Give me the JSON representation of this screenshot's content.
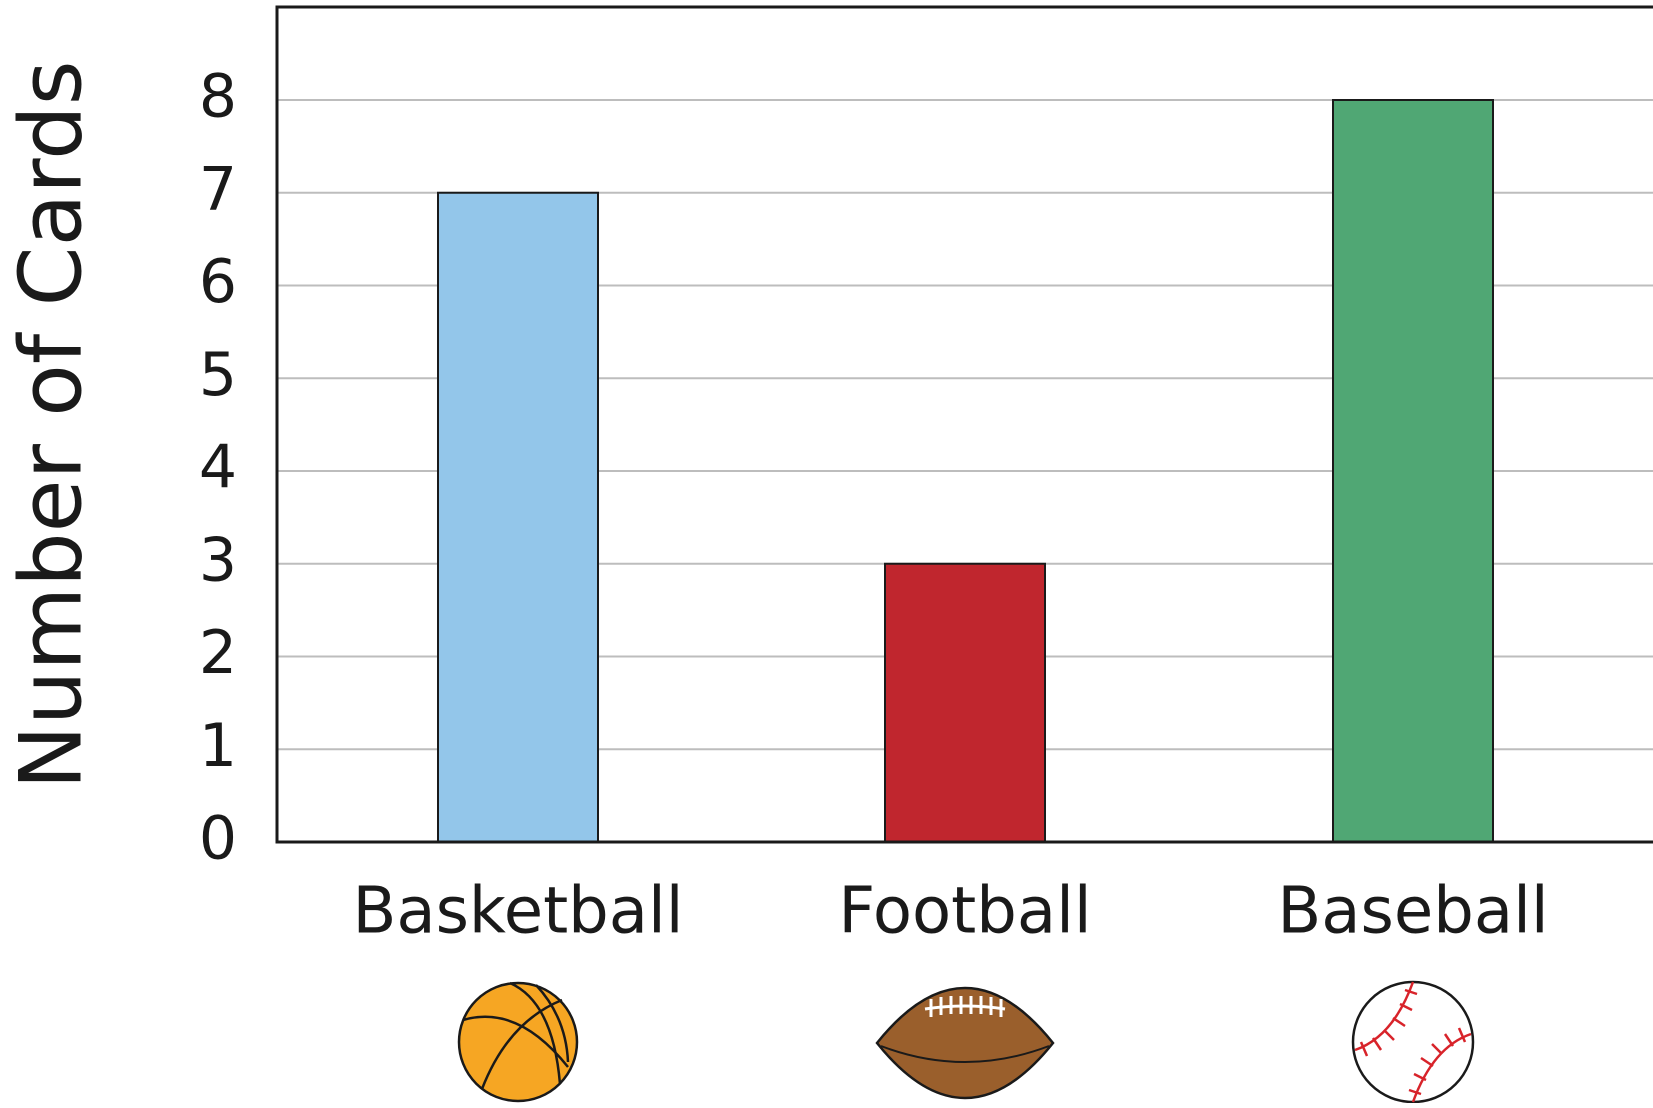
{
  "chart_data": {
    "type": "bar",
    "title": "",
    "xlabel": "",
    "ylabel": "Number of Cards",
    "categories": [
      "Basketball",
      "Football",
      "Baseball"
    ],
    "values": [
      7,
      3,
      8
    ],
    "ylim": [
      0,
      9
    ],
    "yticks": [
      "0",
      "1",
      "2",
      "3",
      "4",
      "5",
      "6",
      "7",
      "8"
    ],
    "grid": true,
    "legend": "none",
    "colors": [
      "#93c6ea",
      "#c0262e",
      "#50a774"
    ],
    "icons": [
      "basketball-icon",
      "football-icon",
      "baseball-icon"
    ]
  }
}
